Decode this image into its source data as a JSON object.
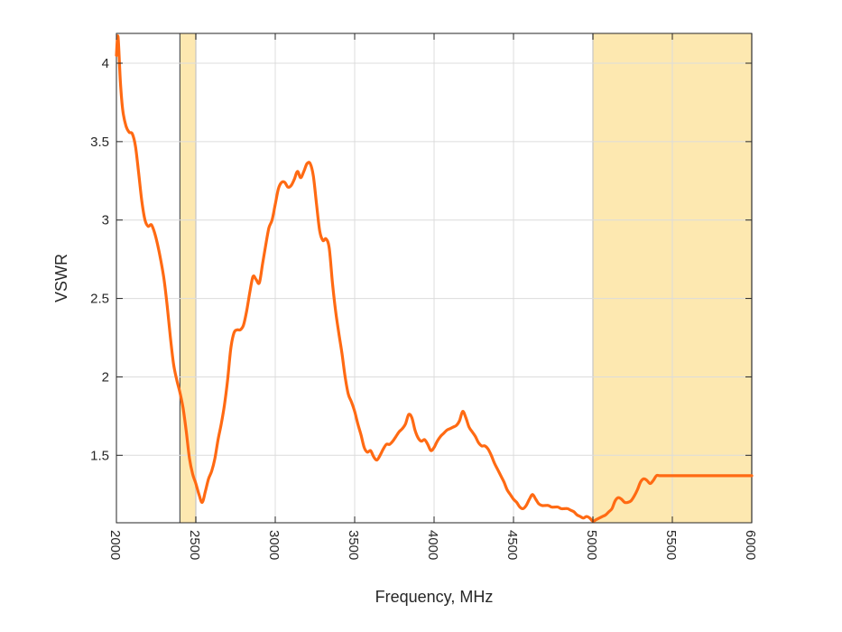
{
  "chart_data": {
    "type": "line",
    "title": "",
    "xlabel": "Frequency, MHz",
    "ylabel": "VSWR",
    "xlim": [
      2000,
      6000
    ],
    "ylim": [
      1.07,
      4.19
    ],
    "xticks": [
      2000,
      2500,
      3000,
      3500,
      4000,
      4500,
      5000,
      5500,
      6000
    ],
    "xtick_labels": [
      "2000",
      "2500",
      "3000",
      "3500",
      "4000",
      "4500",
      "5000",
      "5500",
      "6000"
    ],
    "yticks": [
      1.5,
      2,
      2.5,
      3,
      3.5,
      4
    ],
    "ytick_labels": [
      "1.5",
      "2",
      "2.5",
      "3",
      "3.5",
      "4"
    ],
    "grid": true,
    "line_color": "#ff6a13",
    "band_color": "#fde8b0",
    "bands": [
      [
        2400,
        2500
      ],
      [
        5000,
        6000
      ]
    ],
    "series": [
      {
        "x": [
          2000,
          2010,
          2025,
          2040,
          2060,
          2080,
          2100,
          2120,
          2140,
          2160,
          2180,
          2200,
          2220,
          2240,
          2260,
          2280,
          2300,
          2320,
          2340,
          2360,
          2380,
          2400,
          2420,
          2440,
          2460,
          2480,
          2500,
          2520,
          2540,
          2560,
          2580,
          2600,
          2620,
          2640,
          2660,
          2680,
          2700,
          2720,
          2740,
          2760,
          2780,
          2800,
          2820,
          2840,
          2860,
          2880,
          2900,
          2920,
          2940,
          2960,
          2980,
          3000,
          3020,
          3040,
          3060,
          3080,
          3100,
          3120,
          3140,
          3160,
          3180,
          3200,
          3220,
          3240,
          3260,
          3280,
          3300,
          3320,
          3340,
          3360,
          3380,
          3400,
          3420,
          3440,
          3460,
          3480,
          3500,
          3520,
          3540,
          3560,
          3580,
          3600,
          3620,
          3640,
          3660,
          3680,
          3700,
          3720,
          3740,
          3760,
          3780,
          3800,
          3820,
          3840,
          3860,
          3880,
          3900,
          3920,
          3940,
          3960,
          3980,
          4000,
          4020,
          4040,
          4060,
          4080,
          4100,
          4120,
          4140,
          4160,
          4180,
          4200,
          4220,
          4240,
          4260,
          4280,
          4300,
          4320,
          4340,
          4360,
          4380,
          4400,
          4420,
          4440,
          4460,
          4480,
          4500,
          4520,
          4540,
          4560,
          4580,
          4600,
          4620,
          4640,
          4660,
          4680,
          4700,
          4720,
          4740,
          4760,
          4780,
          4800,
          4820,
          4840,
          4860,
          4880,
          4900,
          4920,
          4940,
          4960,
          4980,
          5000,
          5020,
          5040,
          5060,
          5080,
          5100,
          5120,
          5140,
          5160,
          5180,
          5200,
          5220,
          5240,
          5260,
          5280,
          5300,
          5320,
          5340,
          5360,
          5380,
          5400,
          5420,
          5440,
          5460,
          5480,
          5500,
          5520,
          5540,
          5560,
          5580,
          5600,
          5620,
          5640,
          5660,
          5680,
          5700,
          5720,
          5740,
          5760,
          5780,
          5800,
          5820,
          5840,
          5860,
          5880,
          5900,
          5920,
          5940,
          5960,
          5980,
          6000
        ],
        "values": [
          4.05,
          4.17,
          3.88,
          3.7,
          3.6,
          3.56,
          3.55,
          3.47,
          3.3,
          3.12,
          3.0,
          2.96,
          2.97,
          2.92,
          2.84,
          2.74,
          2.62,
          2.45,
          2.25,
          2.08,
          1.98,
          1.9,
          1.8,
          1.65,
          1.48,
          1.38,
          1.32,
          1.25,
          1.2,
          1.27,
          1.35,
          1.4,
          1.48,
          1.6,
          1.7,
          1.82,
          1.98,
          2.18,
          2.28,
          2.3,
          2.3,
          2.33,
          2.42,
          2.54,
          2.64,
          2.62,
          2.6,
          2.72,
          2.84,
          2.95,
          3.0,
          3.1,
          3.2,
          3.24,
          3.24,
          3.21,
          3.22,
          3.26,
          3.31,
          3.27,
          3.31,
          3.36,
          3.36,
          3.28,
          3.1,
          2.93,
          2.87,
          2.88,
          2.82,
          2.6,
          2.42,
          2.28,
          2.15,
          2.0,
          1.89,
          1.84,
          1.78,
          1.7,
          1.63,
          1.55,
          1.52,
          1.53,
          1.49,
          1.47,
          1.5,
          1.54,
          1.57,
          1.57,
          1.59,
          1.62,
          1.65,
          1.67,
          1.7,
          1.76,
          1.74,
          1.66,
          1.61,
          1.59,
          1.6,
          1.57,
          1.53,
          1.55,
          1.59,
          1.62,
          1.64,
          1.66,
          1.67,
          1.68,
          1.69,
          1.72,
          1.78,
          1.74,
          1.68,
          1.65,
          1.62,
          1.58,
          1.56,
          1.56,
          1.54,
          1.5,
          1.45,
          1.41,
          1.37,
          1.33,
          1.28,
          1.25,
          1.22,
          1.2,
          1.17,
          1.16,
          1.18,
          1.22,
          1.25,
          1.22,
          1.19,
          1.18,
          1.18,
          1.18,
          1.17,
          1.17,
          1.17,
          1.16,
          1.16,
          1.16,
          1.15,
          1.14,
          1.12,
          1.11,
          1.1,
          1.11,
          1.1,
          1.08,
          1.09,
          1.1,
          1.11,
          1.12,
          1.14,
          1.16,
          1.21,
          1.23,
          1.22,
          1.2,
          1.2,
          1.21,
          1.24,
          1.28,
          1.33,
          1.35,
          1.34,
          1.32,
          1.34,
          1.37,
          1.37,
          1.37,
          1.37,
          1.37,
          1.37,
          1.37,
          1.37,
          1.37,
          1.37,
          1.37,
          1.37,
          1.37,
          1.37,
          1.37,
          1.37,
          1.37,
          1.37,
          1.37,
          1.37,
          1.37,
          1.37,
          1.37,
          1.37,
          1.37,
          1.37,
          1.37,
          1.37,
          1.37,
          1.37,
          1.37
        ]
      }
    ]
  }
}
